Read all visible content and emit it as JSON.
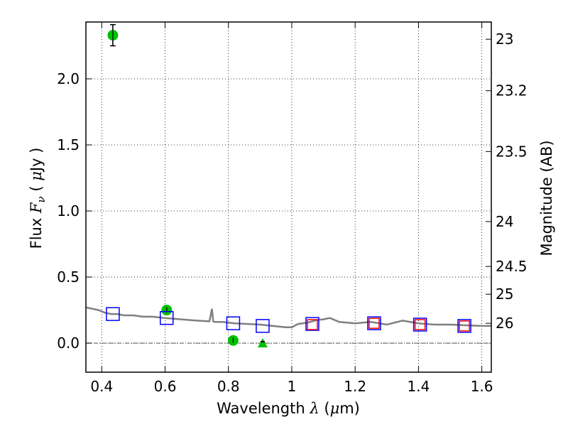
{
  "chart_data": {
    "type": "scatter",
    "title": "",
    "xlabel": "Wavelength",
    "xlabel_math": "λ",
    "xlabel_unit_open": " (",
    "xlabel_unit_mu": "μ",
    "xlabel_unit_rest": "m)",
    "ylabel": "Flux",
    "ylabel_math": "F",
    "ylabel_math_sub": "ν",
    "ylabel_unit_open": "  ( ",
    "ylabel_unit_mu": "μ",
    "ylabel_unit_rest": "Jy )",
    "ylabel_right": "Magnitude (AB)",
    "xlim": [
      0.35,
      1.63
    ],
    "ylim": [
      -0.22,
      2.43
    ],
    "x_ticks": [
      0.4,
      0.6,
      0.8,
      1.0,
      1.2,
      1.4,
      1.6
    ],
    "x_tick_labels": [
      "0.4",
      "0.6",
      "0.8",
      "1",
      "1.2",
      "1.4",
      "1.6"
    ],
    "y_ticks": [
      0.0,
      0.5,
      1.0,
      1.5,
      2.0
    ],
    "y_tick_labels": [
      "0.0",
      "0.5",
      "1.0",
      "1.5",
      "2.0"
    ],
    "right_ticks": [
      {
        "flux": 2.3,
        "label": "23"
      },
      {
        "flux": 1.91,
        "label": "23.2"
      },
      {
        "flux": 1.45,
        "label": "23.5"
      },
      {
        "flux": 0.92,
        "label": "24"
      },
      {
        "flux": 0.58,
        "label": "24.5"
      },
      {
        "flux": 0.37,
        "label": "25"
      },
      {
        "flux": 0.15,
        "label": "26"
      }
    ],
    "grid": true,
    "colors": {
      "spectrum": "#808080",
      "observed": "#00c000",
      "model_blue": "#0000ff",
      "model_red": "#ff0000",
      "errorbar": "#000000"
    },
    "series": [
      {
        "kind": "spectrum",
        "x": [
          0.35,
          0.37,
          0.39,
          0.41,
          0.43,
          0.45,
          0.47,
          0.5,
          0.53,
          0.56,
          0.6,
          0.65,
          0.7,
          0.74,
          0.748,
          0.752,
          0.756,
          0.78,
          0.82,
          0.86,
          0.9,
          0.94,
          0.98,
          1.0,
          1.02,
          1.05,
          1.08,
          1.1,
          1.12,
          1.15,
          1.2,
          1.25,
          1.3,
          1.35,
          1.4,
          1.45,
          1.5,
          1.55,
          1.6,
          1.63
        ],
        "y": [
          0.27,
          0.26,
          0.25,
          0.23,
          0.22,
          0.22,
          0.21,
          0.21,
          0.2,
          0.2,
          0.19,
          0.18,
          0.17,
          0.165,
          0.26,
          0.165,
          0.16,
          0.16,
          0.15,
          0.145,
          0.14,
          0.13,
          0.12,
          0.12,
          0.145,
          0.155,
          0.175,
          0.18,
          0.19,
          0.16,
          0.15,
          0.16,
          0.14,
          0.17,
          0.15,
          0.14,
          0.14,
          0.135,
          0.13,
          0.13
        ]
      },
      {
        "kind": "observed",
        "x": [
          0.435,
          0.605,
          0.815
        ],
        "y": [
          2.33,
          0.25,
          0.02
        ],
        "err": [
          0.08,
          0.02,
          0.02
        ]
      },
      {
        "kind": "upper_limit",
        "x": [
          0.908
        ],
        "y": [
          0.0
        ],
        "err": [
          0.01
        ]
      },
      {
        "kind": "model_blue",
        "x": [
          0.435,
          0.605,
          0.815,
          0.908,
          1.065,
          1.26,
          1.405,
          1.545
        ],
        "y": [
          0.22,
          0.19,
          0.15,
          0.13,
          0.145,
          0.15,
          0.14,
          0.13
        ]
      },
      {
        "kind": "model_red",
        "x": [
          1.065,
          1.26,
          1.405,
          1.545
        ],
        "y": [
          0.14,
          0.15,
          0.14,
          0.13
        ]
      }
    ]
  }
}
